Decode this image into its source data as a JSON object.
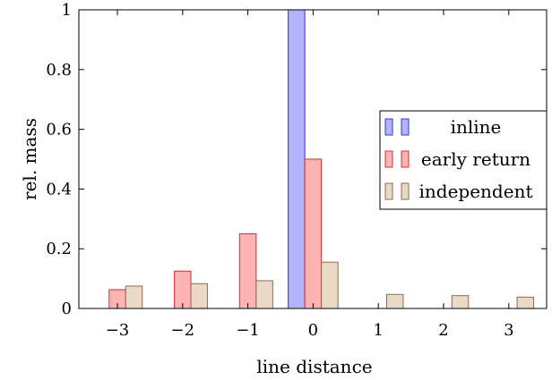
{
  "chart_data": {
    "type": "bar",
    "xlabel": "line distance",
    "ylabel": "rel. mass",
    "ylim": [
      0,
      1
    ],
    "yticks": [
      0,
      0.2,
      0.4,
      0.6,
      0.8,
      1
    ],
    "ytick_labels": [
      "0",
      "0.2",
      "0.4",
      "0.6",
      "0.8",
      "1"
    ],
    "categories": [
      -3,
      -2,
      -1,
      0,
      1,
      2,
      3
    ],
    "category_labels": [
      "−3",
      "−2",
      "−1",
      "0",
      "1",
      "2",
      "3"
    ],
    "legend_position": "right",
    "series": [
      {
        "name": "inline",
        "fill": "#b3b3ff",
        "stroke": "#3333cc",
        "values": [
          0,
          0,
          0,
          1.0,
          0,
          0,
          0
        ]
      },
      {
        "name": "early return",
        "fill": "#ffb3b3",
        "stroke": "#cc3333",
        "values": [
          0.063,
          0.125,
          0.25,
          0.5,
          0,
          0,
          0
        ]
      },
      {
        "name": "independent",
        "fill": "#ead9c6",
        "stroke": "#8c6a4f",
        "values": [
          0.075,
          0.083,
          0.093,
          0.155,
          0.047,
          0.043,
          0.038
        ]
      }
    ]
  }
}
